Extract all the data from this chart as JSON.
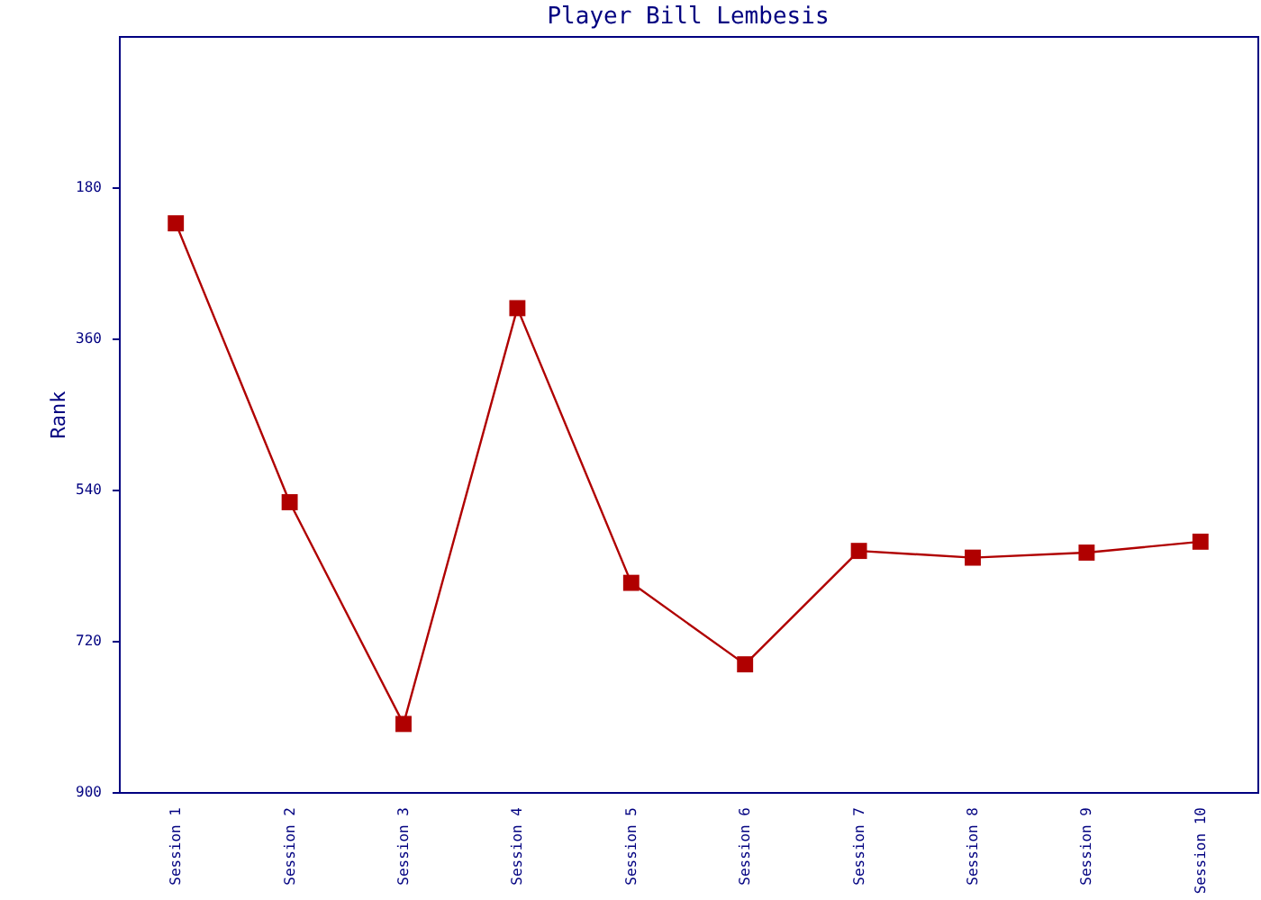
{
  "chart_data": {
    "type": "line",
    "title": "Player Bill Lembesis",
    "ylabel": "Rank",
    "categories": [
      "Session 1",
      "Session 2",
      "Session 3",
      "Session 4",
      "Session 5",
      "Session 6",
      "Session 7",
      "Session 8",
      "Session 9",
      "Session 10"
    ],
    "series": [
      {
        "color": "#b00000",
        "values": [
          223,
          555,
          819,
          324,
          651,
          748,
          613,
          621,
          615,
          602
        ]
      }
    ],
    "ylim": [
      900,
      0
    ],
    "yticks": [
      180,
      360,
      540,
      720,
      900
    ],
    "grid": false,
    "marker": "square",
    "line_style": "solid"
  }
}
